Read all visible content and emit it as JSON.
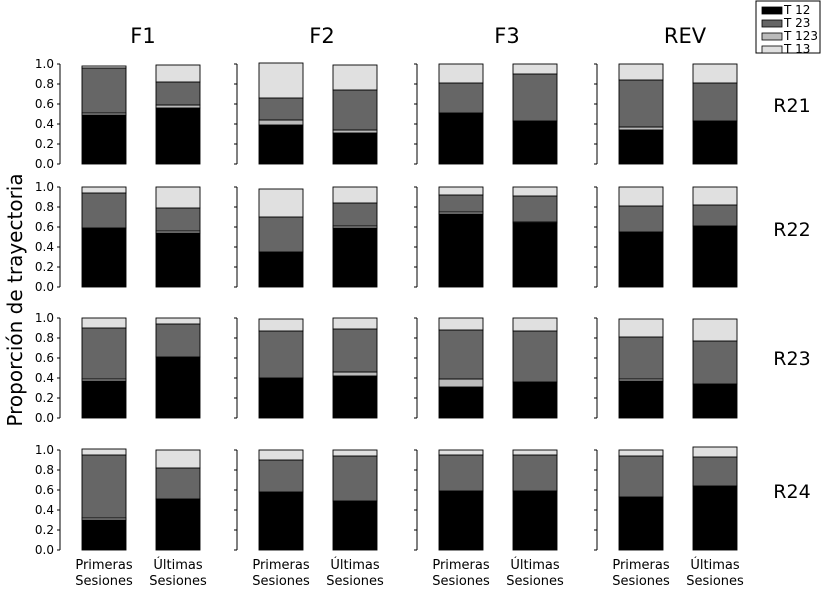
{
  "figure": {
    "ylabel": "Proporción de trayectoria",
    "legend": {
      "placement": "top-right",
      "entries": [
        {
          "label": "T 12",
          "color": "#000000"
        },
        {
          "label": "T 23",
          "color": "#666666"
        },
        {
          "label": "T 123",
          "color": "#bbbbbb"
        },
        {
          "label": "T 13",
          "color": "#e0e0e0"
        }
      ]
    }
  },
  "chart_data": {
    "type": "bar",
    "stacked": true,
    "ylim": [
      0,
      1.0
    ],
    "yticks": [
      "0.0",
      "0.2",
      "0.4",
      "0.6",
      "0.8",
      "1.0"
    ],
    "columns": [
      "F1",
      "F2",
      "F3",
      "REV"
    ],
    "rows": [
      "R21",
      "R22",
      "R23",
      "R24"
    ],
    "categories": [
      "Primeras Sesiones",
      "Últimas Sesiones"
    ],
    "category_lines": [
      [
        "Primeras",
        "Sesiones"
      ],
      [
        "Últimas",
        "Sesiones"
      ]
    ],
    "series_order": [
      "T 12",
      "T 123",
      "T 23",
      "T 13"
    ],
    "series_colors": {
      "T 12": "#000000",
      "T 23": "#666666",
      "T 123": "#bbbbbb",
      "T 13": "#e0e0e0"
    },
    "panels": [
      {
        "row": "R21",
        "col": "F1",
        "bars": [
          {
            "category": "Primeras Sesiones",
            "T 12": 0.49,
            "T 123": 0.02,
            "T 23": 0.45,
            "T 13": 0.02
          },
          {
            "category": "Últimas Sesiones",
            "T 12": 0.56,
            "T 123": 0.03,
            "T 23": 0.23,
            "T 13": 0.17
          }
        ]
      },
      {
        "row": "R21",
        "col": "F2",
        "bars": [
          {
            "category": "Primeras Sesiones",
            "T 12": 0.39,
            "T 123": 0.05,
            "T 23": 0.22,
            "T 13": 0.35
          },
          {
            "category": "Últimas Sesiones",
            "T 12": 0.31,
            "T 123": 0.03,
            "T 23": 0.4,
            "T 13": 0.25
          }
        ]
      },
      {
        "row": "R21",
        "col": "F3",
        "bars": [
          {
            "category": "Primeras Sesiones",
            "T 12": 0.51,
            "T 123": 0.0,
            "T 23": 0.3,
            "T 13": 0.19
          },
          {
            "category": "Últimas Sesiones",
            "T 12": 0.43,
            "T 123": 0.0,
            "T 23": 0.47,
            "T 13": 0.1
          }
        ]
      },
      {
        "row": "R21",
        "col": "REV",
        "bars": [
          {
            "category": "Primeras Sesiones",
            "T 12": 0.34,
            "T 123": 0.03,
            "T 23": 0.47,
            "T 13": 0.16
          },
          {
            "category": "Últimas Sesiones",
            "T 12": 0.43,
            "T 123": 0.0,
            "T 23": 0.38,
            "T 13": 0.19
          }
        ]
      },
      {
        "row": "R22",
        "col": "F1",
        "bars": [
          {
            "category": "Primeras Sesiones",
            "T 12": 0.59,
            "T 123": 0.0,
            "T 23": 0.35,
            "T 13": 0.06
          },
          {
            "category": "Últimas Sesiones",
            "T 12": 0.54,
            "T 123": 0.02,
            "T 23": 0.23,
            "T 13": 0.21
          }
        ]
      },
      {
        "row": "R22",
        "col": "F2",
        "bars": [
          {
            "category": "Primeras Sesiones",
            "T 12": 0.35,
            "T 123": 0.0,
            "T 23": 0.35,
            "T 13": 0.28
          },
          {
            "category": "Últimas Sesiones",
            "T 12": 0.59,
            "T 123": 0.02,
            "T 23": 0.23,
            "T 13": 0.16
          }
        ]
      },
      {
        "row": "R22",
        "col": "F3",
        "bars": [
          {
            "category": "Primeras Sesiones",
            "T 12": 0.73,
            "T 123": 0.02,
            "T 23": 0.17,
            "T 13": 0.08
          },
          {
            "category": "Últimas Sesiones",
            "T 12": 0.64,
            "T 123": 0.01,
            "T 23": 0.26,
            "T 13": 0.09
          }
        ]
      },
      {
        "row": "R22",
        "col": "REV",
        "bars": [
          {
            "category": "Primeras Sesiones",
            "T 12": 0.55,
            "T 123": 0.0,
            "T 23": 0.26,
            "T 13": 0.19
          },
          {
            "category": "Últimas Sesiones",
            "T 12": 0.61,
            "T 123": 0.0,
            "T 23": 0.21,
            "T 13": 0.18
          }
        ]
      },
      {
        "row": "R23",
        "col": "F1",
        "bars": [
          {
            "category": "Primeras Sesiones",
            "T 12": 0.37,
            "T 123": 0.02,
            "T 23": 0.51,
            "T 13": 0.1
          },
          {
            "category": "Últimas Sesiones",
            "T 12": 0.61,
            "T 123": 0.0,
            "T 23": 0.33,
            "T 13": 0.06
          }
        ]
      },
      {
        "row": "R23",
        "col": "F2",
        "bars": [
          {
            "category": "Primeras Sesiones",
            "T 12": 0.4,
            "T 123": 0.0,
            "T 23": 0.47,
            "T 13": 0.12
          },
          {
            "category": "Últimas Sesiones",
            "T 12": 0.42,
            "T 123": 0.04,
            "T 23": 0.43,
            "T 13": 0.11
          }
        ]
      },
      {
        "row": "R23",
        "col": "F3",
        "bars": [
          {
            "category": "Primeras Sesiones",
            "T 12": 0.31,
            "T 123": 0.08,
            "T 23": 0.49,
            "T 13": 0.12
          },
          {
            "category": "Últimas Sesiones",
            "T 12": 0.36,
            "T 123": 0.0,
            "T 23": 0.51,
            "T 13": 0.13
          }
        ]
      },
      {
        "row": "R23",
        "col": "REV",
        "bars": [
          {
            "category": "Primeras Sesiones",
            "T 12": 0.37,
            "T 123": 0.02,
            "T 23": 0.42,
            "T 13": 0.18
          },
          {
            "category": "Últimas Sesiones",
            "T 12": 0.34,
            "T 123": 0.0,
            "T 23": 0.43,
            "T 13": 0.22
          }
        ]
      },
      {
        "row": "R24",
        "col": "F1",
        "bars": [
          {
            "category": "Primeras Sesiones",
            "T 12": 0.3,
            "T 123": 0.02,
            "T 23": 0.63,
            "T 13": 0.06
          },
          {
            "category": "Últimas Sesiones",
            "T 12": 0.51,
            "T 123": 0.0,
            "T 23": 0.31,
            "T 13": 0.18
          }
        ]
      },
      {
        "row": "R24",
        "col": "F2",
        "bars": [
          {
            "category": "Primeras Sesiones",
            "T 12": 0.58,
            "T 123": 0.0,
            "T 23": 0.32,
            "T 13": 0.1
          },
          {
            "category": "Últimas Sesiones",
            "T 12": 0.49,
            "T 123": 0.0,
            "T 23": 0.45,
            "T 13": 0.06
          }
        ]
      },
      {
        "row": "R24",
        "col": "F3",
        "bars": [
          {
            "category": "Primeras Sesiones",
            "T 12": 0.59,
            "T 123": 0.0,
            "T 23": 0.36,
            "T 13": 0.05
          },
          {
            "category": "Últimas Sesiones",
            "T 12": 0.59,
            "T 123": 0.0,
            "T 23": 0.36,
            "T 13": 0.05
          }
        ]
      },
      {
        "row": "R24",
        "col": "REV",
        "bars": [
          {
            "category": "Primeras Sesiones",
            "T 12": 0.53,
            "T 123": 0.0,
            "T 23": 0.41,
            "T 13": 0.06
          },
          {
            "category": "Últimas Sesiones",
            "T 12": 0.64,
            "T 123": 0.0,
            "T 23": 0.29,
            "T 13": 0.1
          }
        ]
      }
    ]
  }
}
